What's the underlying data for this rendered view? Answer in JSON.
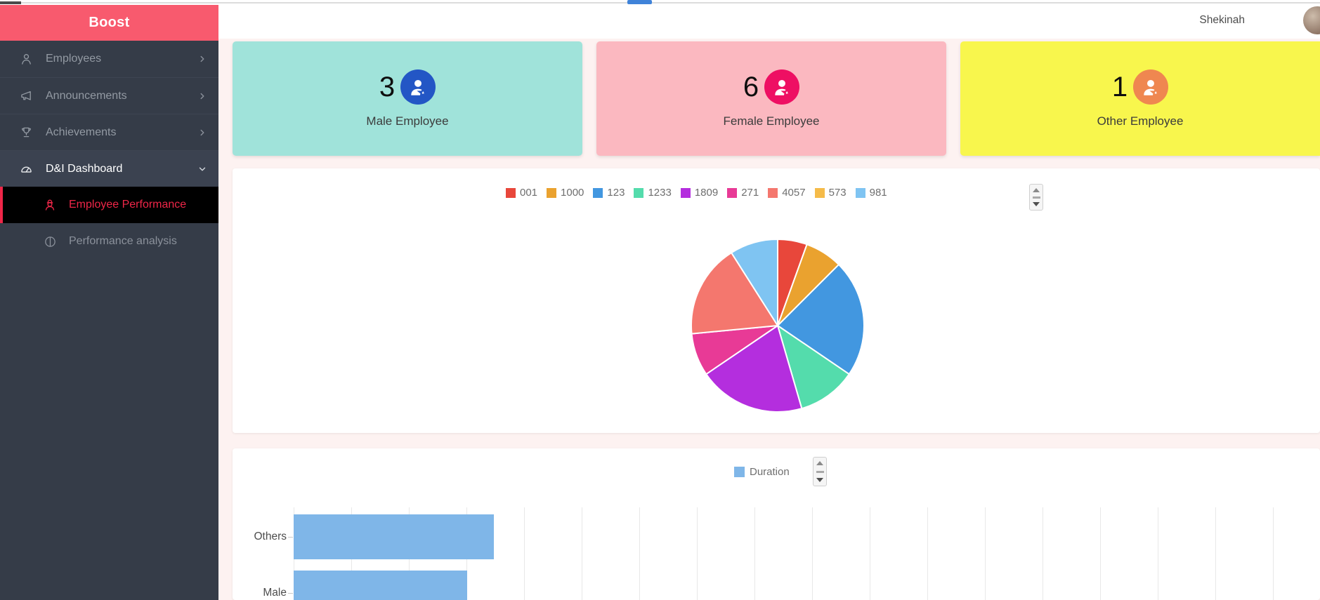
{
  "brand": {
    "name": "Boost",
    "color": "#f85a6e"
  },
  "topbar": {
    "username": "Shekinah"
  },
  "sidebar": {
    "accent_color": "#ef2648",
    "items": [
      {
        "label": "Employees",
        "icon": "person",
        "chevron": "right"
      },
      {
        "label": "Announcements",
        "icon": "megaphone",
        "chevron": "right"
      },
      {
        "label": "Achievements",
        "icon": "trophy",
        "chevron": "right"
      },
      {
        "label": "D&I Dashboard",
        "icon": "gauge",
        "chevron": "down",
        "expanded": true
      }
    ],
    "subitems": [
      {
        "label": "Employee Performance",
        "icon": "engineer-person",
        "selected": true
      },
      {
        "label": "Performance analysis",
        "icon": "circle-line",
        "selected": false
      }
    ]
  },
  "cards": [
    {
      "value": "3",
      "label": "Male Employee",
      "bg": "#a0e3da",
      "icon_bg": "#2356c5",
      "icon": "person-star"
    },
    {
      "value": "6",
      "label": "Female Employee",
      "bg": "#fbb8c0",
      "icon_bg": "#ee0f63",
      "icon": "person-star"
    },
    {
      "value": "1",
      "label": "Other Employee",
      "bg": "#f8f64d",
      "icon_bg": "#ef8750",
      "icon": "person-star"
    }
  ],
  "chart_data": [
    {
      "type": "pie",
      "legend_position": "top",
      "slices": [
        {
          "label": "001",
          "color": "#e8473b",
          "percent": 5.5
        },
        {
          "label": "1000",
          "color": "#eaa22f",
          "percent": 7
        },
        {
          "label": "123",
          "color": "#4297e0",
          "percent": 22
        },
        {
          "label": "1233",
          "color": "#54dcac",
          "percent": 11
        },
        {
          "label": "1809",
          "color": "#b42ede",
          "percent": 20
        },
        {
          "label": "271",
          "color": "#e83a96",
          "percent": 8
        },
        {
          "label": "4057",
          "color": "#f4776e",
          "percent": 17.5
        },
        {
          "label": "573",
          "color": "#f5bb49",
          "percent": 0
        },
        {
          "label": "981",
          "color": "#7fc4f2",
          "percent": 9
        }
      ]
    },
    {
      "type": "bar",
      "orientation": "horizontal",
      "legend_position": "top",
      "categories": [
        "Others",
        "Male"
      ],
      "series": [
        {
          "name": "Duration",
          "color": "#7fb6e8",
          "values": [
            3.48,
            3.01
          ]
        }
      ],
      "xlim": [
        0,
        17.5
      ],
      "gridlines": true,
      "x_axis_labels_visible": false
    }
  ]
}
